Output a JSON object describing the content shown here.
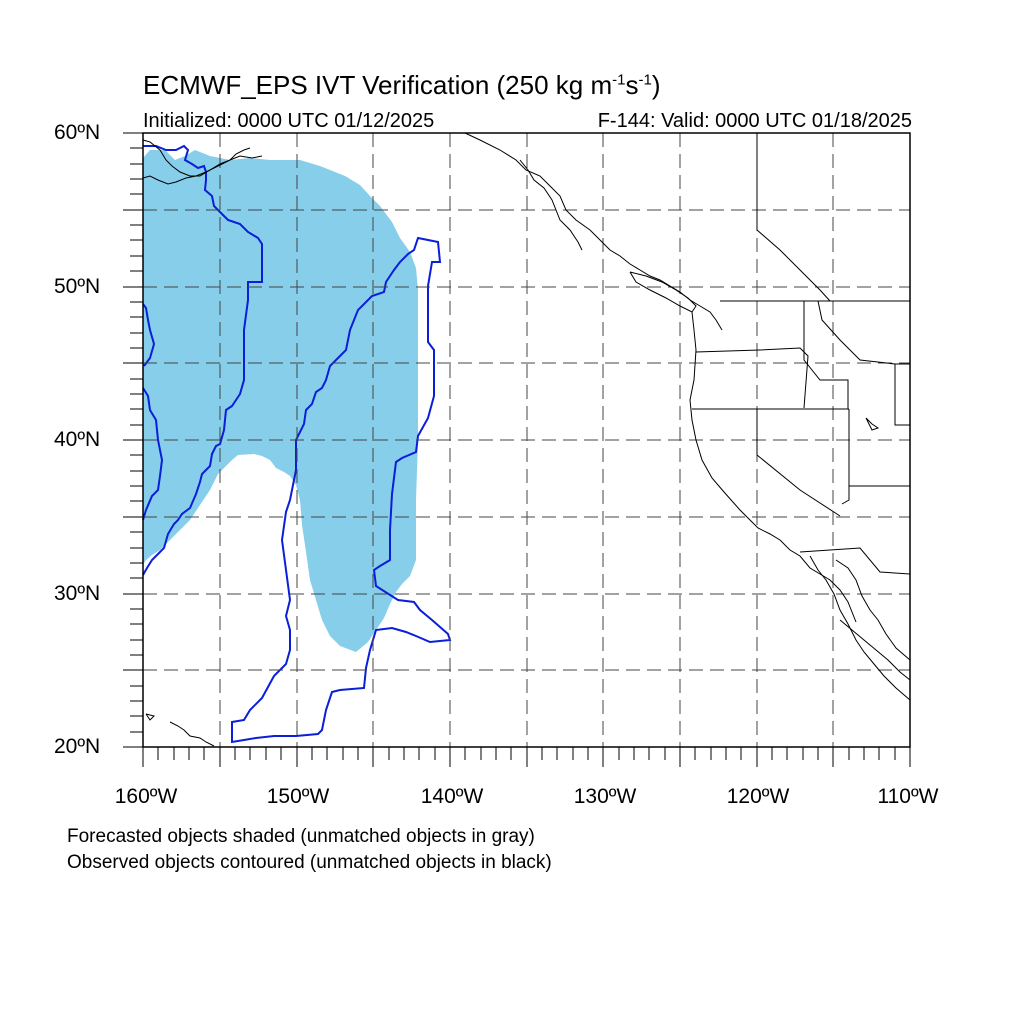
{
  "header": {
    "title_main": "ECMWF_EPS IVT Verification (250 kg m",
    "title_exp1": "-1",
    "title_mid": "s",
    "title_exp2": "-1",
    "title_end": ")",
    "initialized": "Initialized: 0000 UTC 01/12/2025",
    "valid": "F-144: Valid: 0000 UTC 01/18/2025"
  },
  "axes": {
    "lat_labels": [
      "60ºN",
      "50ºN",
      "40ºN",
      "30ºN",
      "20ºN"
    ],
    "lon_labels": [
      "160ºW",
      "150ºW",
      "140ºW",
      "130ºW",
      "120ºW",
      "110ºW"
    ],
    "lat_range": [
      20,
      60
    ],
    "lon_range": [
      -160,
      -110
    ]
  },
  "legend": {
    "line1": "Forecasted objects shaded (unmatched objects in gray)",
    "line2": "Observed objects contoured (unmatched objects in black)"
  },
  "colors": {
    "forecast_fill": "#87ceea",
    "observed_contour": "#0b1ed8",
    "coastline": "#000000",
    "grid": "#444444"
  }
}
